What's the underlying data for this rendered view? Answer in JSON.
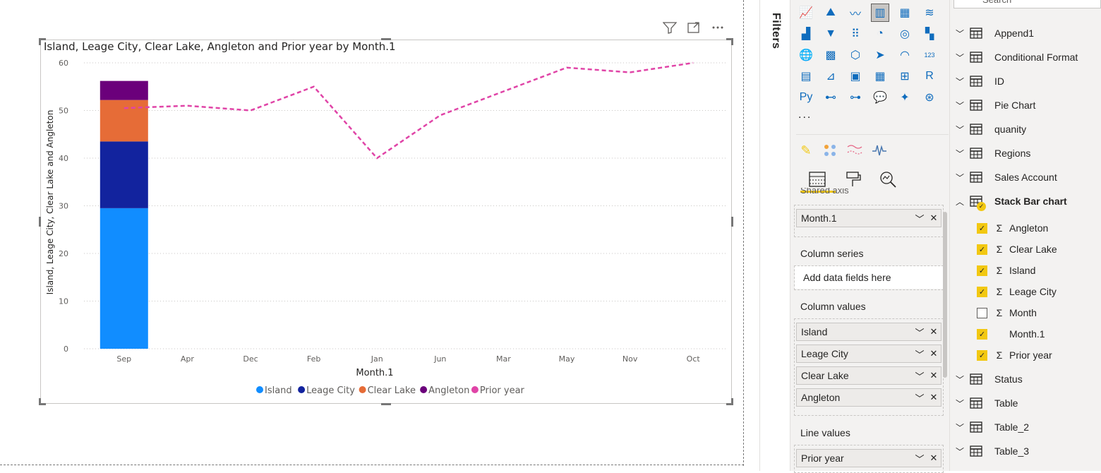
{
  "chart": {
    "title": "Island, Leage City, Clear Lake, Angleton and Prior year by Month.1",
    "toolbar": {
      "filter_icon": "filter-icon",
      "focus_icon": "focus-mode-icon",
      "more_icon": "more-options-icon"
    }
  },
  "chart_data": {
    "type": "bar",
    "subtype": "stacked column and line",
    "title": "Island, Leage City, Clear Lake, Angleton and Prior year by Month.1",
    "xlabel": "Month.1",
    "ylabel": "Island, Leage City, Clear Lake and Angleton",
    "categories": [
      "Sep",
      "Apr",
      "Dec",
      "Feb",
      "Jan",
      "Jun",
      "Mar",
      "May",
      "Nov",
      "Oct"
    ],
    "ylim": [
      0,
      60
    ],
    "yticks": [
      0,
      10,
      20,
      30,
      40,
      50,
      60
    ],
    "grid": true,
    "legend": "bottom",
    "series": [
      {
        "name": "Island",
        "kind": "column",
        "color": "#118dff",
        "values": [
          29.5,
          null,
          null,
          null,
          null,
          null,
          null,
          null,
          null,
          null
        ]
      },
      {
        "name": "Leage City",
        "kind": "column",
        "color": "#12239e",
        "values": [
          14,
          null,
          null,
          null,
          null,
          null,
          null,
          null,
          null,
          null
        ]
      },
      {
        "name": "Clear Lake",
        "kind": "column",
        "color": "#e66c37",
        "values": [
          8.7,
          null,
          null,
          null,
          null,
          null,
          null,
          null,
          null,
          null
        ]
      },
      {
        "name": "Angleton",
        "kind": "column",
        "color": "#6b007b",
        "values": [
          4,
          null,
          null,
          null,
          null,
          null,
          null,
          null,
          null,
          null
        ]
      },
      {
        "name": "Prior year",
        "kind": "line",
        "color": "#e044a7",
        "values": [
          50.5,
          51,
          50,
          55,
          40,
          49,
          54,
          59,
          58,
          60
        ]
      }
    ]
  },
  "filters": {
    "label": "Filters"
  },
  "visualizations": {
    "icons": [
      "line-chart-icon",
      "area-chart-icon",
      "stacked-area-icon",
      "line-and-stacked-column-icon",
      "line-and-clustered-column-icon",
      "ribbon-chart-icon",
      "waterfall-icon",
      "funnel-icon",
      "scatter-icon",
      "pie-chart-icon",
      "donut-chart-icon",
      "treemap-icon",
      "map-icon",
      "filled-map-icon",
      "shape-map-icon",
      "azure-map-icon",
      "gauge-icon",
      "card-icon",
      "multi-row-card-icon",
      "kpi-icon",
      "slicer-icon",
      "table-icon",
      "matrix-icon",
      "r-visual-icon",
      "python-visual-icon",
      "key-influencers-icon",
      "decomposition-tree-icon",
      "qna-icon",
      "smart-narrative-icon",
      "paginated-report-icon"
    ],
    "more_label": "...",
    "extra_icons": [
      "power-automate-icon",
      "dots-visual-icon",
      "chart-visual-icon",
      "sparkline-visual-icon"
    ],
    "tabs": [
      "fields-tab",
      "format-tab",
      "analytics-tab"
    ],
    "shared_axis_label": "Shared axis",
    "shared_axis_field": "Month.1",
    "column_series_label": "Column series",
    "column_series_placeholder": "Add data fields here",
    "column_values_label": "Column values",
    "column_values": [
      "Island",
      "Leage City",
      "Clear Lake",
      "Angleton"
    ],
    "line_values_label": "Line values",
    "line_values": [
      "Prior year"
    ]
  },
  "fields": {
    "search_placeholder": "Search",
    "tables_before": [
      "Append1",
      "Conditional Format",
      "ID",
      "Pie Chart",
      "quanity",
      "Regions",
      "Sales Account"
    ],
    "expanded_table": "Stack Bar chart",
    "expanded_fields": [
      {
        "name": "Angleton",
        "checked": true,
        "sigma": true
      },
      {
        "name": "Clear Lake",
        "checked": true,
        "sigma": true
      },
      {
        "name": "Island",
        "checked": true,
        "sigma": true
      },
      {
        "name": "Leage City",
        "checked": true,
        "sigma": true
      },
      {
        "name": "Month",
        "checked": false,
        "sigma": true
      },
      {
        "name": "Month.1",
        "checked": true,
        "sigma": false
      },
      {
        "name": "Prior year",
        "checked": true,
        "sigma": true
      }
    ],
    "tables_after": [
      "Status",
      "Table",
      "Table_2",
      "Table_3"
    ]
  }
}
